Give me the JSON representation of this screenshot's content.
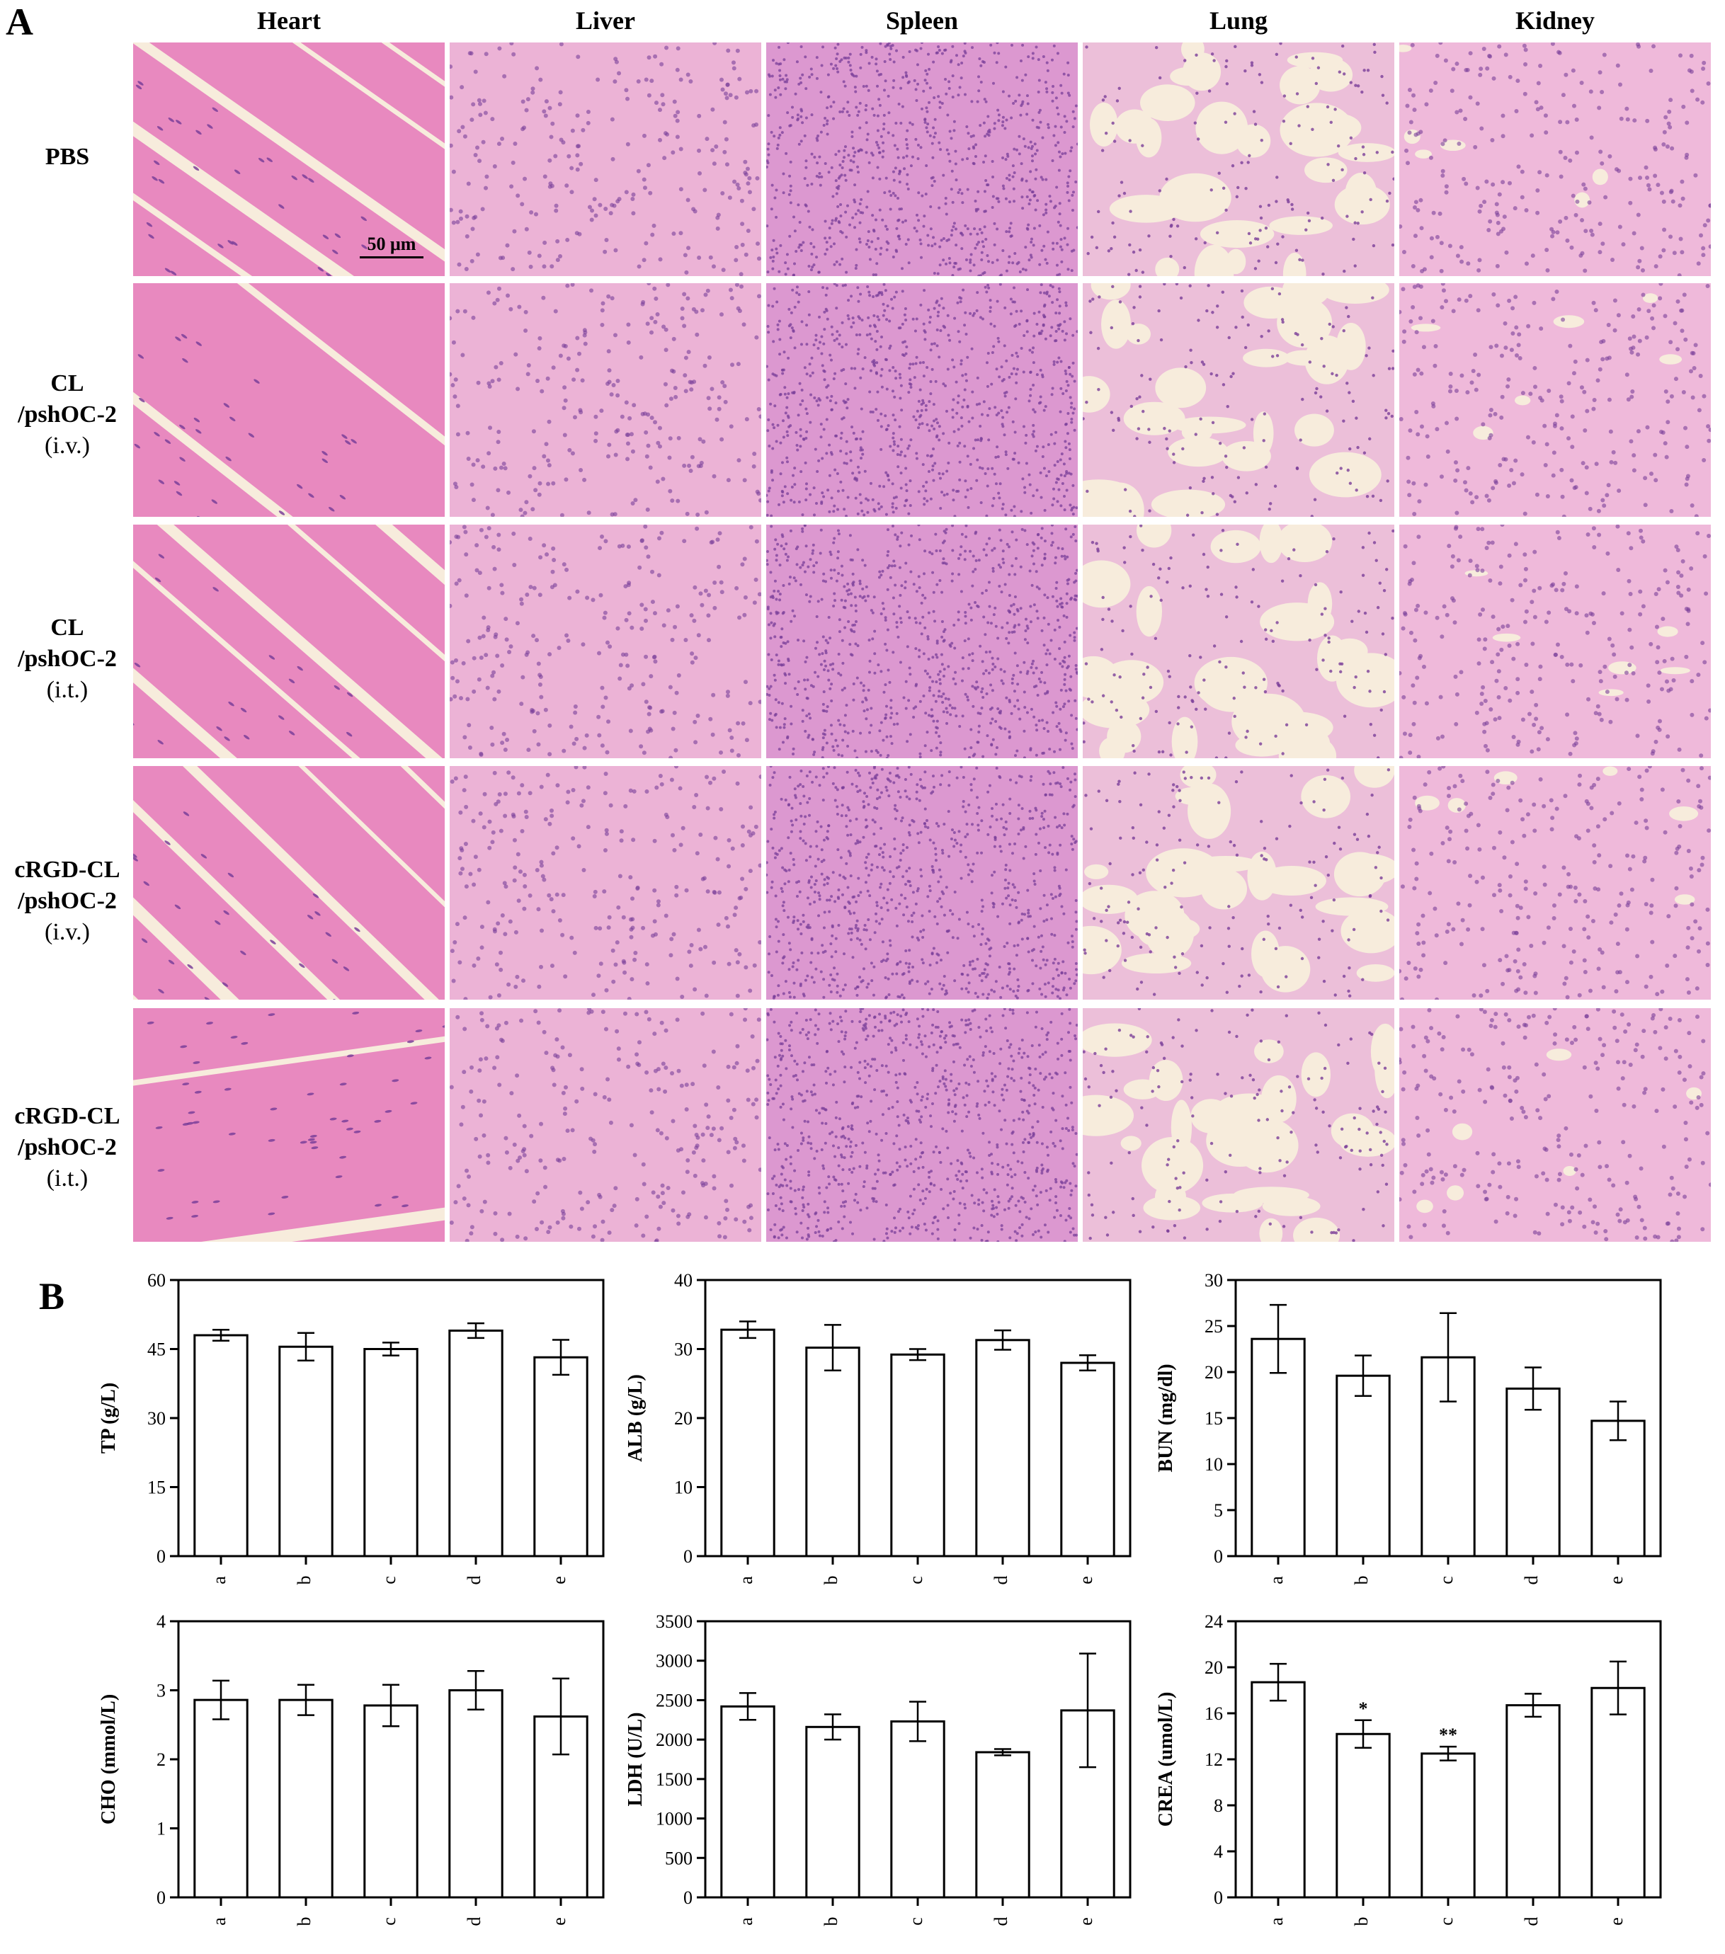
{
  "panel_a_letter": "A",
  "panel_b_letter": "B",
  "columns": [
    "Heart",
    "Liver",
    "Spleen",
    "Lung",
    "Kidney"
  ],
  "rows": [
    {
      "lines": [
        "PBS"
      ],
      "route": ""
    },
    {
      "lines": [
        "CL",
        "/pshOC-2"
      ],
      "route": "(i.v.)"
    },
    {
      "lines": [
        "CL",
        "/pshOC-2"
      ],
      "route": "(i.t.)"
    },
    {
      "lines": [
        "cRGD-CL",
        "/pshOC-2"
      ],
      "route": "(i.v.)"
    },
    {
      "lines": [
        "cRGD-CL",
        "/pshOC-2"
      ],
      "route": "(i.t.)"
    }
  ],
  "scale_bar": "50 μm",
  "colors": {
    "heart": "#e889bf",
    "liver": "#ecb3d6",
    "spleen": "#dc98d0",
    "lung": "#ecbfd9",
    "kidney": "#efb9da",
    "nuclei": "#7a3f99",
    "lumen": "#f7ecdc",
    "background": "#ffffff"
  },
  "chart_data": [
    {
      "type": "bar",
      "ylabel": "TP (g/L)",
      "categories": [
        "a",
        "b",
        "c",
        "d",
        "e"
      ],
      "values": [
        48,
        45.5,
        45,
        49,
        43.2
      ],
      "errors": [
        1.2,
        3,
        1.4,
        1.6,
        3.8
      ],
      "ylim": [
        0,
        60
      ],
      "yticks": [
        "0",
        "15",
        "30",
        "45",
        "60"
      ],
      "annotations": [
        "",
        "",
        "",
        "",
        ""
      ]
    },
    {
      "type": "bar",
      "ylabel": "ALB (g/L)",
      "categories": [
        "a",
        "b",
        "c",
        "d",
        "e"
      ],
      "values": [
        32.8,
        30.2,
        29.2,
        31.3,
        28
      ],
      "errors": [
        1.2,
        3.3,
        0.8,
        1.4,
        1.1
      ],
      "ylim": [
        0,
        40
      ],
      "yticks": [
        "0",
        "10",
        "20",
        "30",
        "40"
      ],
      "annotations": [
        "",
        "",
        "",
        "",
        ""
      ]
    },
    {
      "type": "bar",
      "ylabel": "BUN (mg/dl)",
      "categories": [
        "a",
        "b",
        "c",
        "d",
        "e"
      ],
      "values": [
        23.6,
        19.6,
        21.6,
        18.2,
        14.7
      ],
      "errors": [
        3.7,
        2.2,
        4.8,
        2.3,
        2.1
      ],
      "ylim": [
        0,
        30
      ],
      "yticks": [
        "0",
        "5",
        "10",
        "15",
        "20",
        "25",
        "30"
      ],
      "annotations": [
        "",
        "",
        "",
        "",
        ""
      ]
    },
    {
      "type": "bar",
      "ylabel": "CHO  (mmol/L)",
      "categories": [
        "a",
        "b",
        "c",
        "d",
        "e"
      ],
      "values": [
        2.86,
        2.86,
        2.78,
        3.0,
        2.62
      ],
      "errors": [
        0.28,
        0.22,
        0.3,
        0.28,
        0.55
      ],
      "ylim": [
        0,
        4
      ],
      "yticks": [
        "0",
        "1",
        "2",
        "3",
        "4"
      ],
      "annotations": [
        "",
        "",
        "",
        "",
        ""
      ]
    },
    {
      "type": "bar",
      "ylabel": "LDH (U/L)",
      "categories": [
        "a",
        "b",
        "c",
        "d",
        "e"
      ],
      "values": [
        2420,
        2160,
        2230,
        1840,
        2370
      ],
      "errors": [
        170,
        160,
        250,
        40,
        720
      ],
      "ylim": [
        0,
        3500
      ],
      "yticks": [
        "0",
        "500",
        "1000",
        "1500",
        "2000",
        "2500",
        "3000",
        "3500"
      ],
      "annotations": [
        "",
        "",
        "",
        "",
        ""
      ]
    },
    {
      "type": "bar",
      "ylabel": "CREA  (umol/L)",
      "categories": [
        "a",
        "b",
        "c",
        "d",
        "e"
      ],
      "values": [
        18.7,
        14.2,
        12.5,
        16.7,
        18.2
      ],
      "errors": [
        1.6,
        1.2,
        0.6,
        1.0,
        2.3
      ],
      "ylim": [
        0,
        24
      ],
      "yticks": [
        "0",
        "4",
        "8",
        "12",
        "16",
        "20",
        "24"
      ],
      "annotations": [
        "",
        "*",
        "**",
        "",
        ""
      ]
    }
  ]
}
